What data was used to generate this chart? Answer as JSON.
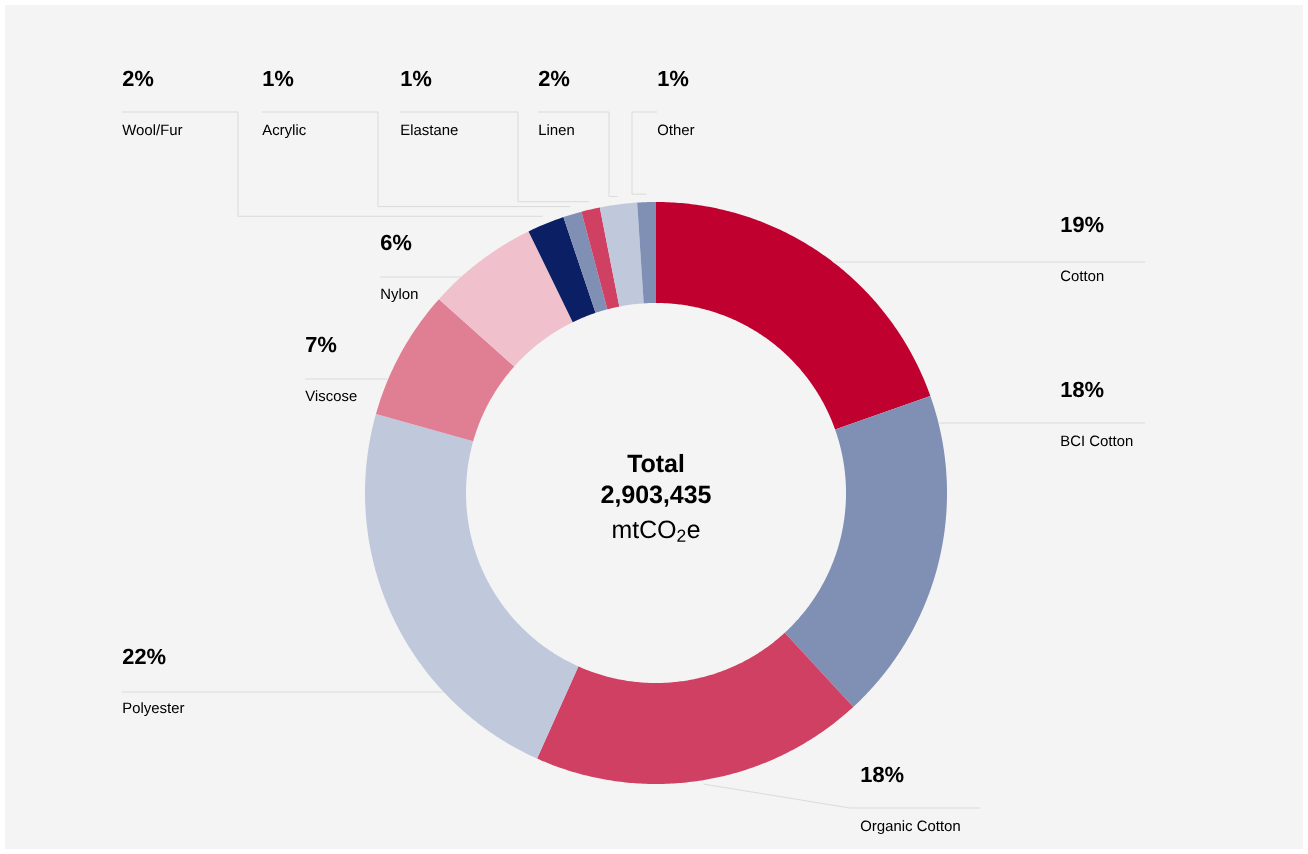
{
  "chart_data": {
    "type": "donut",
    "categories": [
      "Cotton",
      "BCI Cotton",
      "Organic Cotton",
      "Polyester",
      "Viscose",
      "Nylon",
      "Wool/Fur",
      "Acrylic",
      "Elastane",
      "Linen",
      "Other"
    ],
    "values": [
      19,
      18,
      18,
      22,
      7,
      6,
      2,
      1,
      1,
      2,
      1
    ],
    "value_labels": [
      "19%",
      "18%",
      "18%",
      "22%",
      "7%",
      "6%",
      "2%",
      "1%",
      "1%",
      "2%",
      "1%"
    ],
    "colors": [
      "#c0002f",
      "#8090b4",
      "#d04062",
      "#c0c8dc",
      "#e07f94",
      "#f0c0cc",
      "#0a1f64",
      "#8090b4",
      "#d04062",
      "#c0c8dc",
      "#8090b4"
    ],
    "annotations": [
      "Total",
      "2,903,435",
      "mtCO$_{2}$e"
    ]
  }
}
